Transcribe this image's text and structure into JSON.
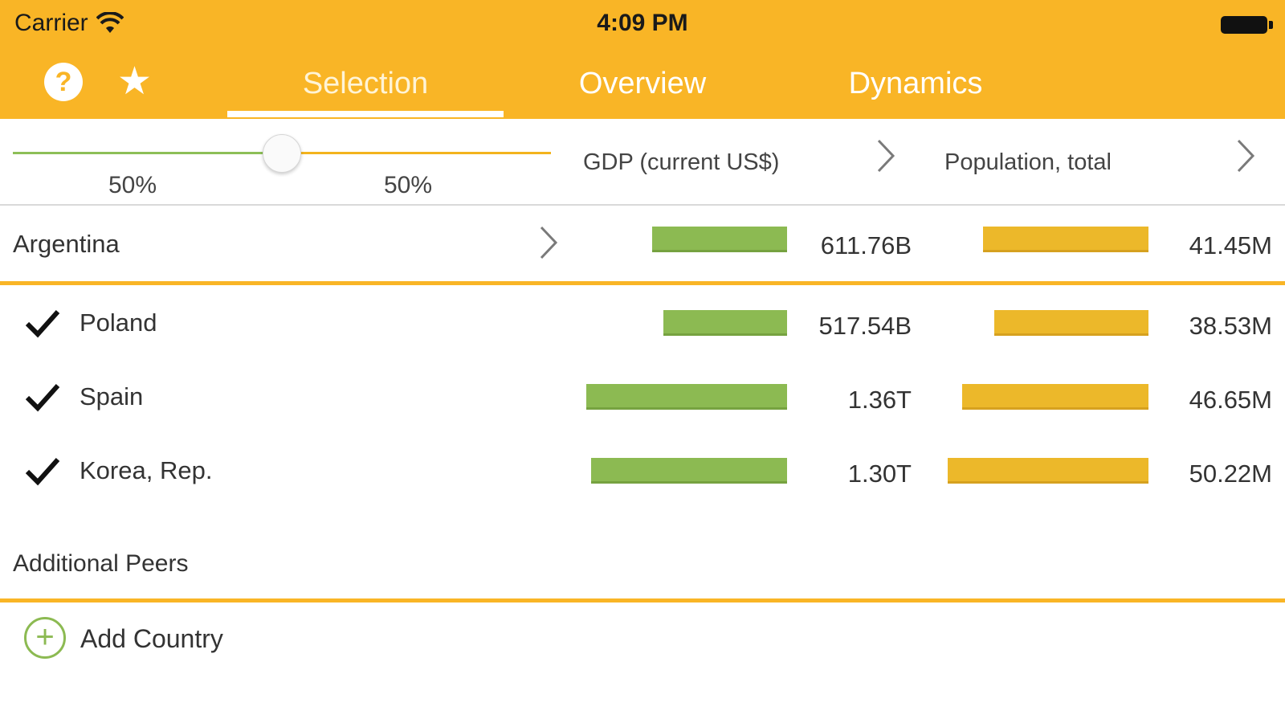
{
  "status_bar": {
    "carrier": "Carrier",
    "time": "4:09 PM"
  },
  "tabs": [
    {
      "label": "Selection",
      "active": true
    },
    {
      "label": "Overview",
      "active": false
    },
    {
      "label": "Dynamics",
      "active": false
    }
  ],
  "weights": {
    "left": "50%",
    "right": "50%",
    "slider_value": 0.5
  },
  "indicators": {
    "gdp": "GDP (current US$)",
    "population": "Population, total"
  },
  "colors": {
    "accent": "#f9b526",
    "gdp_bar": "#8cba52",
    "population_bar": "#ecb82a"
  },
  "icons": {
    "help": "question-circle-icon",
    "favorites": "star-icon",
    "select": "checkmark-icon",
    "add": "plus-circle-icon",
    "navigate": "chevron-right-icon"
  },
  "primary": {
    "name": "Argentina",
    "gdp": "611.76B",
    "population": "41.45M",
    "gdp_value": 611.76,
    "population_value": 41.45
  },
  "peers": [
    {
      "name": "Poland",
      "gdp": "517.54B",
      "population": "38.53M",
      "gdp_value": 517.54,
      "population_value": 38.53,
      "checked": true
    },
    {
      "name": "Spain",
      "gdp": "1.36T",
      "population": "46.65M",
      "gdp_value": 1360,
      "population_value": 46.65,
      "checked": true
    },
    {
      "name": "Korea, Rep.",
      "gdp": "1.30T",
      "population": "50.22M",
      "gdp_value": 1300,
      "population_value": 50.22,
      "checked": true
    }
  ],
  "additional": {
    "title": "Additional Peers",
    "add_label": "Add Country"
  }
}
